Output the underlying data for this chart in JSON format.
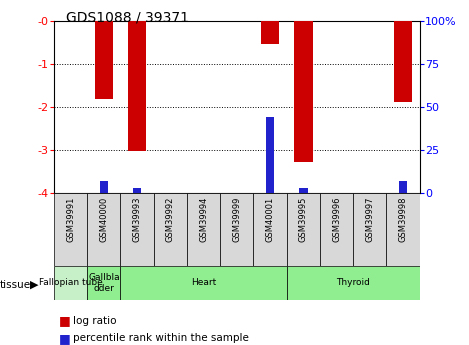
{
  "title": "GDS1088 / 39371",
  "samples": [
    "GSM39991",
    "GSM40000",
    "GSM39993",
    "GSM39992",
    "GSM39994",
    "GSM39999",
    "GSM40001",
    "GSM39995",
    "GSM39996",
    "GSM39997",
    "GSM39998"
  ],
  "log_ratios": [
    0,
    -1.82,
    -3.02,
    0,
    0,
    0,
    -0.55,
    -3.28,
    0,
    0,
    -1.88
  ],
  "percentile_ranks": [
    0,
    7,
    3,
    0,
    0,
    0,
    44,
    3,
    0,
    0,
    7
  ],
  "tissue_groups": [
    {
      "label": "Fallopian tube",
      "start": 0,
      "end": 1,
      "color": "#c8f0c8"
    },
    {
      "label": "Gallbla\ndder",
      "start": 1,
      "end": 2,
      "color": "#90EE90"
    },
    {
      "label": "Heart",
      "start": 2,
      "end": 7,
      "color": "#90EE90"
    },
    {
      "label": "Thyroid",
      "start": 7,
      "end": 11,
      "color": "#90EE90"
    }
  ],
  "ylim_left": [
    -4,
    0
  ],
  "ylim_right": [
    0,
    100
  ],
  "bar_color_red": "#cc0000",
  "bar_color_blue": "#2222cc",
  "background_color": "#ffffff",
  "title_fontsize": 10,
  "bar_width": 0.55,
  "blue_bar_width": 0.25
}
